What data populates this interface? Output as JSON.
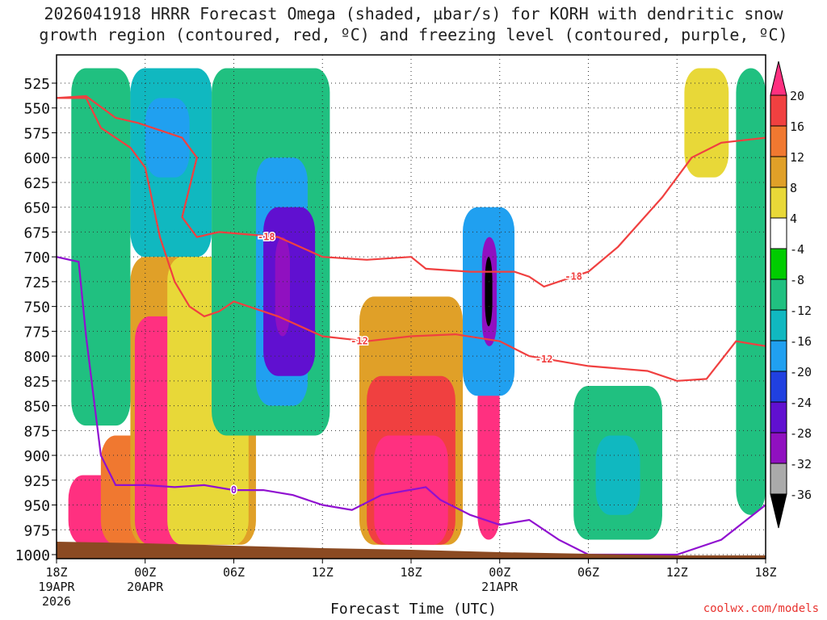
{
  "title_line1": "2026041918 HRRR Forecast Omega (shaded, µbar/s) for KORH with dendritic snow",
  "title_line2": "growth region (contoured, red, ºC) and freezing level (contoured, purple, ºC)",
  "credit": "coolwx.com/models",
  "chart_data": {
    "type": "heatmap",
    "title": "2026041918 HRRR Forecast Omega (shaded, µbar/s) for KORH with dendritic snow growth region (contoured, red, ºC) and freezing level (contoured, purple, ºC)",
    "xlabel": "Forecast Time (UTC)",
    "ylabel": "",
    "x_range_hours": [
      0,
      48
    ],
    "y_range_hPa": [
      1000,
      500
    ],
    "y_ticks": [
      "525",
      "550",
      "575",
      "600",
      "625",
      "650",
      "675",
      "700",
      "725",
      "750",
      "775",
      "800",
      "825",
      "850",
      "875",
      "900",
      "925",
      "950",
      "975",
      "1000"
    ],
    "x_ticks": [
      {
        "hour": 0,
        "label": "18Z",
        "sub1": "19APR",
        "sub2": "2026"
      },
      {
        "hour": 6,
        "label": "00Z",
        "sub1": "20APR",
        "sub2": ""
      },
      {
        "hour": 12,
        "label": "06Z",
        "sub1": "",
        "sub2": ""
      },
      {
        "hour": 18,
        "label": "12Z",
        "sub1": "",
        "sub2": ""
      },
      {
        "hour": 24,
        "label": "18Z",
        "sub1": "",
        "sub2": ""
      },
      {
        "hour": 30,
        "label": "00Z",
        "sub1": "21APR",
        "sub2": ""
      },
      {
        "hour": 36,
        "label": "06Z",
        "sub1": "",
        "sub2": ""
      },
      {
        "hour": 42,
        "label": "12Z",
        "sub1": "",
        "sub2": ""
      },
      {
        "hour": 48,
        "label": "18Z",
        "sub1": "",
        "sub2": ""
      }
    ],
    "colorbar_levels": [
      "20",
      "16",
      "12",
      "8",
      "4",
      "-4",
      "-8",
      "-12",
      "-16",
      "-20",
      "-24",
      "-28",
      "-32",
      "-36"
    ],
    "colorbar_colors": [
      "#ff3080",
      "#f04040",
      "#f07830",
      "#e0a028",
      "#e8d838",
      "#ffffff",
      "#00cc00",
      "#20c080",
      "#10b8c0",
      "#20a0f0",
      "#2040e0",
      "#6010d0",
      "#9010c0",
      "#aaaaaa",
      "#000000"
    ],
    "omega_cells": [
      {
        "t0": 0.8,
        "t1": 5.0,
        "p_top": 920,
        "p_bot": 990,
        "omega": 22
      },
      {
        "t0": 3.0,
        "t1": 13.0,
        "p_top": 880,
        "p_bot": 990,
        "omega": 14
      },
      {
        "t0": 5.0,
        "t1": 13.5,
        "p_top": 700,
        "p_bot": 990,
        "omega": 8
      },
      {
        "t0": 5.3,
        "t1": 12.5,
        "p_top": 760,
        "p_bot": 990,
        "omega": 22
      },
      {
        "t0": 7.5,
        "t1": 13.0,
        "p_top": 700,
        "p_bot": 990,
        "omega": 4
      },
      {
        "t0": 20.5,
        "t1": 27.5,
        "p_top": 740,
        "p_bot": 990,
        "omega": 8
      },
      {
        "t0": 21.0,
        "t1": 27.0,
        "p_top": 820,
        "p_bot": 990,
        "omega": 16
      },
      {
        "t0": 21.5,
        "t1": 26.5,
        "p_top": 880,
        "p_bot": 990,
        "omega": 22
      },
      {
        "t0": 28.5,
        "t1": 30.0,
        "p_top": 820,
        "p_bot": 985,
        "omega": 22
      },
      {
        "t0": 1.0,
        "t1": 5.0,
        "p_top": 510,
        "p_bot": 870,
        "omega": -8
      },
      {
        "t0": 5.0,
        "t1": 10.5,
        "p_top": 510,
        "p_bot": 700,
        "omega": -12
      },
      {
        "t0": 6.0,
        "t1": 9.0,
        "p_top": 540,
        "p_bot": 620,
        "omega": -16
      },
      {
        "t0": 10.5,
        "t1": 18.5,
        "p_top": 510,
        "p_bot": 880,
        "omega": -8
      },
      {
        "t0": 13.5,
        "t1": 17.0,
        "p_top": 600,
        "p_bot": 850,
        "omega": -16
      },
      {
        "t0": 14.0,
        "t1": 17.5,
        "p_top": 650,
        "p_bot": 820,
        "omega": -24
      },
      {
        "t0": 14.8,
        "t1": 15.8,
        "p_top": 680,
        "p_bot": 780,
        "omega": -28
      },
      {
        "t0": 27.5,
        "t1": 31.0,
        "p_top": 650,
        "p_bot": 840,
        "omega": -16
      },
      {
        "t0": 28.8,
        "t1": 29.8,
        "p_top": 680,
        "p_bot": 790,
        "omega": -28
      },
      {
        "t0": 29.0,
        "t1": 29.5,
        "p_top": 700,
        "p_bot": 770,
        "omega": -36
      },
      {
        "t0": 35.0,
        "t1": 41.0,
        "p_top": 830,
        "p_bot": 985,
        "omega": -8
      },
      {
        "t0": 36.5,
        "t1": 39.5,
        "p_top": 880,
        "p_bot": 960,
        "omega": -12
      },
      {
        "t0": 46.0,
        "t1": 48.0,
        "p_top": 510,
        "p_bot": 960,
        "omega": -8
      },
      {
        "t0": 42.5,
        "t1": 45.5,
        "p_top": 510,
        "p_bot": 620,
        "omega": 4
      }
    ],
    "contour_labels": [
      {
        "value": "-18",
        "t": 14.2,
        "p": 680
      },
      {
        "value": "-18",
        "t": 35.0,
        "p": 720
      },
      {
        "value": "-12",
        "t": 20.5,
        "p": 785
      },
      {
        "value": "-12",
        "t": 33.0,
        "p": 803
      },
      {
        "value": "0",
        "t": 12.0,
        "p": 935
      }
    ],
    "dgz_top_18C": [
      [
        0,
        540
      ],
      [
        2,
        538
      ],
      [
        4,
        560
      ],
      [
        5.5,
        565
      ],
      [
        8.5,
        580
      ],
      [
        9.5,
        600
      ],
      [
        8.5,
        660
      ],
      [
        9.5,
        680
      ],
      [
        11,
        675
      ],
      [
        15,
        680
      ],
      [
        18,
        700
      ],
      [
        21,
        703
      ],
      [
        24,
        700
      ],
      [
        25,
        712
      ],
      [
        28,
        715
      ],
      [
        31,
        715
      ],
      [
        32,
        720
      ],
      [
        33,
        730
      ],
      [
        35,
        720
      ],
      [
        36,
        715
      ],
      [
        38,
        690
      ],
      [
        41,
        640
      ],
      [
        43,
        600
      ],
      [
        45,
        585
      ],
      [
        48,
        580
      ]
    ],
    "dgz_bottom_12C": [
      [
        0,
        540
      ],
      [
        2,
        540
      ],
      [
        3,
        570
      ],
      [
        5,
        590
      ],
      [
        6,
        610
      ],
      [
        7,
        680
      ],
      [
        8,
        725
      ],
      [
        9,
        750
      ],
      [
        10,
        760
      ],
      [
        11,
        755
      ],
      [
        12,
        745
      ],
      [
        15,
        760
      ],
      [
        18,
        780
      ],
      [
        21,
        785
      ],
      [
        24,
        780
      ],
      [
        27,
        778
      ],
      [
        30,
        785
      ],
      [
        32,
        800
      ],
      [
        36,
        810
      ],
      [
        40,
        815
      ],
      [
        42,
        825
      ],
      [
        44,
        823
      ],
      [
        46,
        785
      ],
      [
        48,
        790
      ]
    ],
    "freezing_level_0C": [
      [
        0,
        700
      ],
      [
        1.5,
        705
      ],
      [
        2,
        780
      ],
      [
        2.5,
        840
      ],
      [
        3,
        900
      ],
      [
        4,
        930
      ],
      [
        6,
        930
      ],
      [
        8,
        932
      ],
      [
        10,
        930
      ],
      [
        12,
        935
      ],
      [
        14,
        935
      ],
      [
        16,
        940
      ],
      [
        18,
        950
      ],
      [
        20,
        955
      ],
      [
        22,
        940
      ],
      [
        25,
        932
      ],
      [
        26,
        945
      ],
      [
        28,
        960
      ],
      [
        30,
        970
      ],
      [
        32,
        965
      ],
      [
        34,
        985
      ],
      [
        36,
        1000
      ],
      [
        42,
        1000
      ],
      [
        45,
        985
      ],
      [
        48,
        950
      ]
    ]
  }
}
